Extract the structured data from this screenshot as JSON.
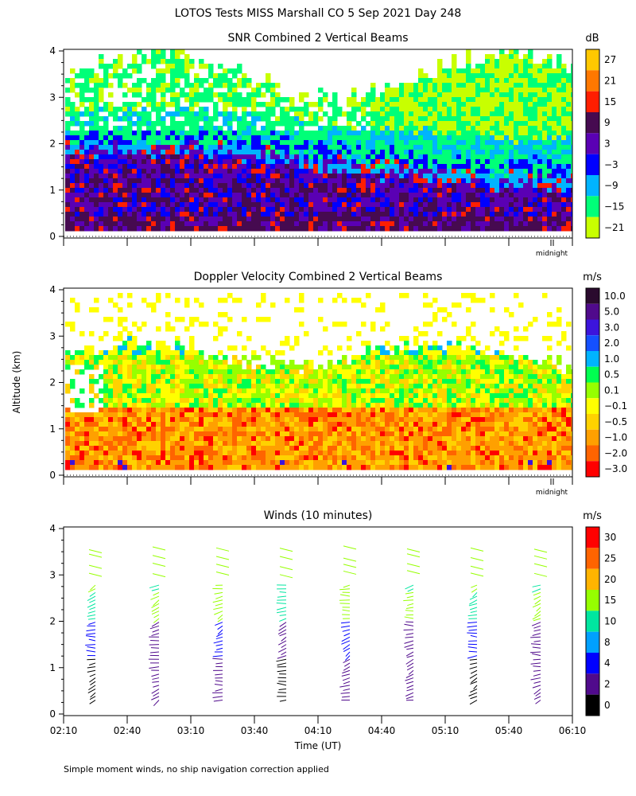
{
  "main_title": "LOTOS Tests MISS Marshall CO   5 Sep 2021 Day 248",
  "footer_note": "Simple moment winds, no ship navigation correction applied",
  "shared": {
    "y_axis_label": "Altitude (km)",
    "x_axis_label": "Time (UT)",
    "ylim": [
      0,
      4
    ],
    "y_ticks": [
      "0",
      "1",
      "2",
      "3",
      "4"
    ],
    "x_ticks": [
      "02:10",
      "02:40",
      "03:10",
      "03:40",
      "04:10",
      "04:40",
      "05:10",
      "05:40",
      "06:10"
    ],
    "midnight_label": "midnight"
  },
  "chart_data": [
    {
      "type": "heatmap",
      "title": "SNR Combined 2 Vertical Beams",
      "colorbar_unit": "dB",
      "colorbar_labels": [
        "27",
        "21",
        "15",
        "9",
        "3",
        "−3",
        "−9",
        "−15",
        "−21"
      ],
      "colorbar_colors": [
        "#ffc800",
        "#ff7800",
        "#ff1e00",
        "#460a50",
        "#5a00b4",
        "#0000ff",
        "#00b4ff",
        "#00ff78",
        "#c8ff00"
      ],
      "ylim": [
        0,
        4
      ],
      "data_floor_km": 0.25,
      "description_layers": [
        {
          "from_km": 0.25,
          "to_km": 0.6,
          "band": "9"
        },
        {
          "from_km": 0.6,
          "to_km": 1.8,
          "band": "3 to -3"
        },
        {
          "from_km": 1.8,
          "to_km": 2.3,
          "band": "-9 to -15"
        },
        {
          "from_km": 2.3,
          "to_km": 3.9,
          "band": "-15 to -21"
        }
      ]
    },
    {
      "type": "heatmap",
      "title": "Doppler Velocity Combined 2 Vertical Beams",
      "colorbar_unit": "m/s",
      "colorbar_labels": [
        "10.0",
        "5.0",
        "3.0",
        "2.0",
        "1.0",
        "0.5",
        "0.1",
        "−0.1",
        "−0.5",
        "−1.0",
        "−2.0",
        "−3.0"
      ],
      "colorbar_colors": [
        "#2a0a2e",
        "#500a8c",
        "#3c14dc",
        "#1450ff",
        "#00b4ff",
        "#00ff50",
        "#96ff00",
        "#ffff00",
        "#ffd200",
        "#ffa000",
        "#ff6400",
        "#ff0000"
      ],
      "ylim": [
        0,
        4
      ],
      "data_floor_km": 0.25
    },
    {
      "type": "scatter",
      "title": "Winds (10 minutes)",
      "colorbar_unit": "m/s",
      "colorbar_labels": [
        "30",
        "25",
        "20",
        "15",
        "10",
        "8",
        "4",
        "2",
        "0"
      ],
      "colorbar_colors": [
        "#ff0000",
        "#ff6400",
        "#ffb400",
        "#96ff00",
        "#00e6a0",
        "#00a0ff",
        "#0000ff",
        "#500a8c",
        "#000000"
      ],
      "ylim": [
        0,
        4
      ],
      "profile_times_ut": [
        "02:25",
        "02:55",
        "03:25",
        "03:55",
        "04:25",
        "04:55",
        "05:25",
        "05:55"
      ]
    }
  ]
}
